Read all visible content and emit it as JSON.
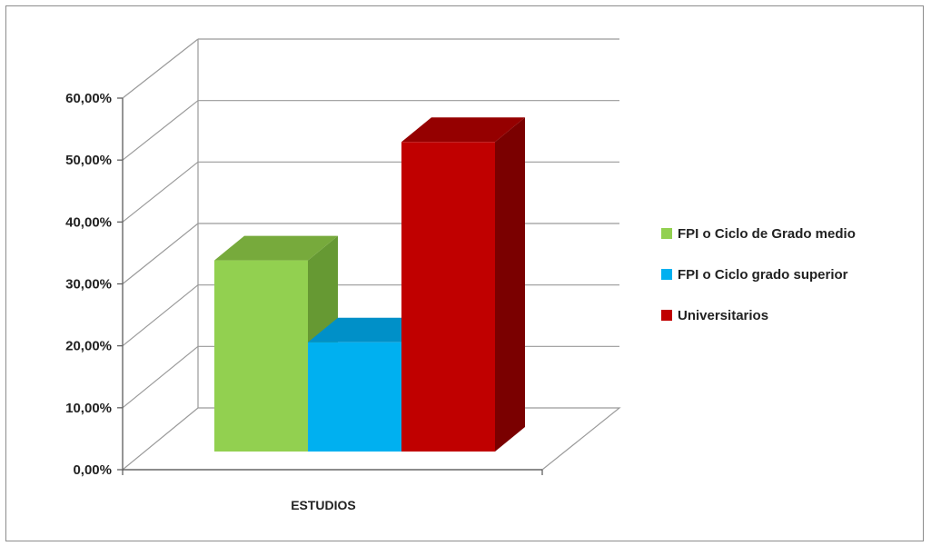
{
  "chart_data": {
    "type": "bar",
    "categories": [
      "ESTUDIOS"
    ],
    "series": [
      {
        "name": "FPI o Ciclo de Grado medio",
        "values": [
          31.5
        ],
        "color": "#92d050",
        "side": "#669933",
        "top": "#77aa3c"
      },
      {
        "name": "FPI o Ciclo grado superior",
        "values": [
          18.0
        ],
        "color": "#00b0f0",
        "side": "#0080b0",
        "top": "#0090c8"
      },
      {
        "name": "Universitarios",
        "values": [
          51.0
        ],
        "color": "#c00000",
        "side": "#7a0000",
        "top": "#950000"
      }
    ],
    "yticks": [
      "0,00%",
      "10,00%",
      "20,00%",
      "30,00%",
      "40,00%",
      "50,00%",
      "60,00%"
    ],
    "ylim": [
      0,
      60
    ],
    "legend_position": "right",
    "grid": true,
    "projection": "3d"
  }
}
